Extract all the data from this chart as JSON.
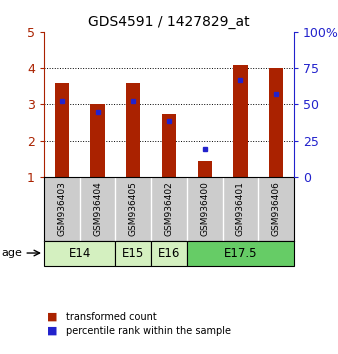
{
  "title": "GDS4591 / 1427829_at",
  "samples": [
    "GSM936403",
    "GSM936404",
    "GSM936405",
    "GSM936402",
    "GSM936400",
    "GSM936401",
    "GSM936406"
  ],
  "red_values": [
    3.6,
    3.0,
    3.6,
    2.75,
    1.45,
    4.1,
    4.0
  ],
  "blue_values": [
    3.1,
    2.8,
    3.1,
    2.55,
    1.78,
    3.68,
    3.28
  ],
  "ylim": [
    1,
    5
  ],
  "yticks": [
    1,
    2,
    3,
    4,
    5
  ],
  "right_yticklabels": [
    "0",
    "25",
    "50",
    "75",
    "100%"
  ],
  "age_groups": [
    {
      "label": "E14",
      "indices": [
        0,
        1
      ],
      "color": "#d4f0c0"
    },
    {
      "label": "E15",
      "indices": [
        2
      ],
      "color": "#d4f0c0"
    },
    {
      "label": "E16",
      "indices": [
        3
      ],
      "color": "#d4f0c0"
    },
    {
      "label": "E17.5",
      "indices": [
        4,
        5,
        6
      ],
      "color": "#66cc66"
    }
  ],
  "bar_color": "#aa2200",
  "dot_color": "#2222cc",
  "bar_width": 0.4,
  "background_color": "#ffffff",
  "label_area_color": "#cccccc",
  "legend_red": "transformed count",
  "legend_blue": "percentile rank within the sample"
}
